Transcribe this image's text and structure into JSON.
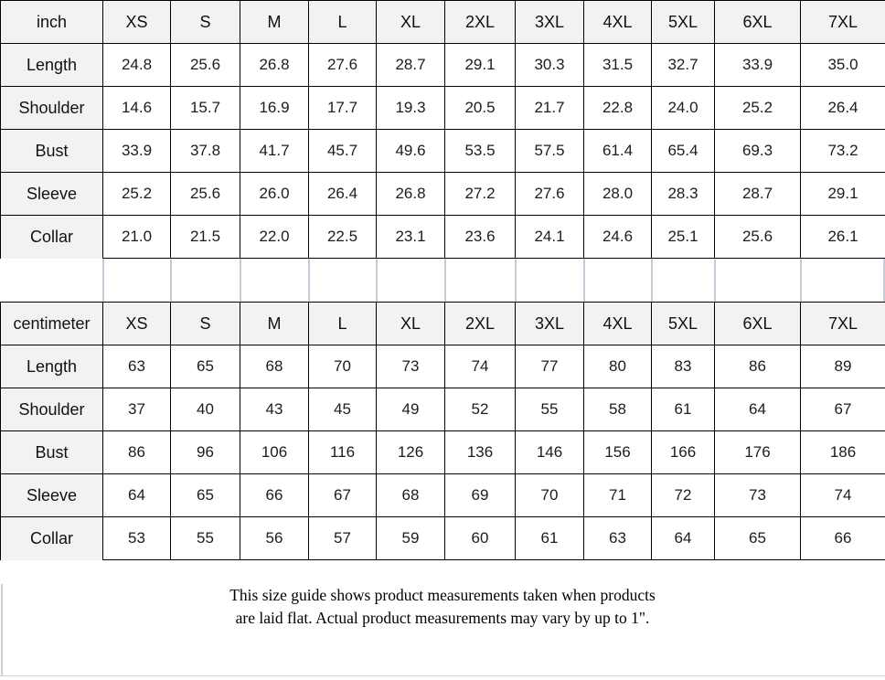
{
  "page": {
    "footer": {
      "line1": "This size guide shows product measurements taken when products",
      "line2": "are laid flat. Actual product measurements may vary by up to 1\"."
    }
  },
  "colors": {
    "header_cell_bg": "#f2f2f2",
    "table_border": "#000000",
    "faint_gridline": "#c3ccd8",
    "text": "#111111"
  },
  "tables": [
    {
      "id": "inch",
      "unit_label": "inch",
      "sizes": [
        "XS",
        "S",
        "M",
        "L",
        "XL",
        "2XL",
        "3XL",
        "4XL",
        "5XL",
        "6XL",
        "7XL"
      ],
      "rows": [
        {
          "label": "Length",
          "values": [
            "24.8",
            "25.6",
            "26.8",
            "27.6",
            "28.7",
            "29.1",
            "30.3",
            "31.5",
            "32.7",
            "33.9",
            "35.0"
          ]
        },
        {
          "label": "Shoulder",
          "values": [
            "14.6",
            "15.7",
            "16.9",
            "17.7",
            "19.3",
            "20.5",
            "21.7",
            "22.8",
            "24.0",
            "25.2",
            "26.4"
          ]
        },
        {
          "label": "Bust",
          "values": [
            "33.9",
            "37.8",
            "41.7",
            "45.7",
            "49.6",
            "53.5",
            "57.5",
            "61.4",
            "65.4",
            "69.3",
            "73.2"
          ]
        },
        {
          "label": "Sleeve",
          "values": [
            "25.2",
            "25.6",
            "26.0",
            "26.4",
            "26.8",
            "27.2",
            "27.6",
            "28.0",
            "28.3",
            "28.7",
            "29.1"
          ]
        },
        {
          "label": "Collar",
          "values": [
            "21.0",
            "21.5",
            "22.0",
            "22.5",
            "23.1",
            "23.6",
            "24.1",
            "24.6",
            "25.1",
            "25.6",
            "26.1"
          ]
        }
      ]
    },
    {
      "id": "centimeter",
      "unit_label": "centimeter",
      "sizes": [
        "XS",
        "S",
        "M",
        "L",
        "XL",
        "2XL",
        "3XL",
        "4XL",
        "5XL",
        "6XL",
        "7XL"
      ],
      "rows": [
        {
          "label": "Length",
          "values": [
            "63",
            "65",
            "68",
            "70",
            "73",
            "74",
            "77",
            "80",
            "83",
            "86",
            "89"
          ]
        },
        {
          "label": "Shoulder",
          "values": [
            "37",
            "40",
            "43",
            "45",
            "49",
            "52",
            "55",
            "58",
            "61",
            "64",
            "67"
          ]
        },
        {
          "label": "Bust",
          "values": [
            "86",
            "96",
            "106",
            "116",
            "126",
            "136",
            "146",
            "156",
            "166",
            "176",
            "186"
          ]
        },
        {
          "label": "Sleeve",
          "values": [
            "64",
            "65",
            "66",
            "67",
            "68",
            "69",
            "70",
            "71",
            "72",
            "73",
            "74"
          ]
        },
        {
          "label": "Collar",
          "values": [
            "53",
            "55",
            "56",
            "57",
            "59",
            "60",
            "61",
            "63",
            "64",
            "65",
            "66"
          ]
        }
      ]
    }
  ]
}
